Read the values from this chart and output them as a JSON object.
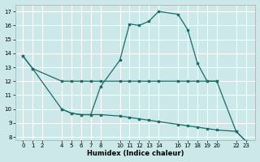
{
  "xlabel": "Humidex (Indice chaleur)",
  "bg_color": "#cce8e8",
  "grid_color": "#ffffff",
  "line_color": "#1a6b6b",
  "yticks": [
    8,
    9,
    10,
    11,
    12,
    13,
    14,
    15,
    16,
    17
  ],
  "xticks": [
    0,
    1,
    2,
    4,
    5,
    6,
    7,
    8,
    10,
    11,
    12,
    13,
    14,
    16,
    17,
    18,
    19,
    20,
    22,
    23
  ],
  "curve1_x": [
    0,
    1,
    4,
    5,
    6,
    7,
    8,
    10,
    11,
    12,
    13,
    14,
    16,
    17,
    18,
    19,
    20
  ],
  "curve1_y": [
    13.8,
    12.9,
    12.0,
    12.0,
    12.0,
    12.0,
    12.0,
    12.0,
    12.0,
    12.0,
    12.0,
    12.0,
    12.0,
    12.0,
    12.0,
    12.0,
    12.0
  ],
  "curve2_x": [
    0,
    1,
    4,
    5,
    6,
    7,
    8,
    10,
    11,
    12,
    13,
    14,
    16,
    17,
    18,
    19,
    20,
    22,
    23
  ],
  "curve2_y": [
    13.8,
    12.9,
    10.0,
    9.7,
    9.6,
    9.6,
    11.6,
    13.5,
    16.1,
    16.0,
    16.3,
    17.0,
    16.8,
    15.7,
    13.3,
    12.0,
    12.0,
    8.4,
    7.7
  ],
  "curve3_x": [
    4,
    5,
    6,
    7,
    8,
    10,
    11,
    12,
    13,
    14,
    16,
    17,
    18,
    19,
    20,
    22,
    23
  ],
  "curve3_y": [
    10.0,
    9.7,
    9.6,
    9.6,
    9.6,
    9.5,
    9.4,
    9.3,
    9.2,
    9.1,
    8.9,
    8.8,
    8.7,
    8.6,
    8.5,
    8.4,
    7.7
  ]
}
